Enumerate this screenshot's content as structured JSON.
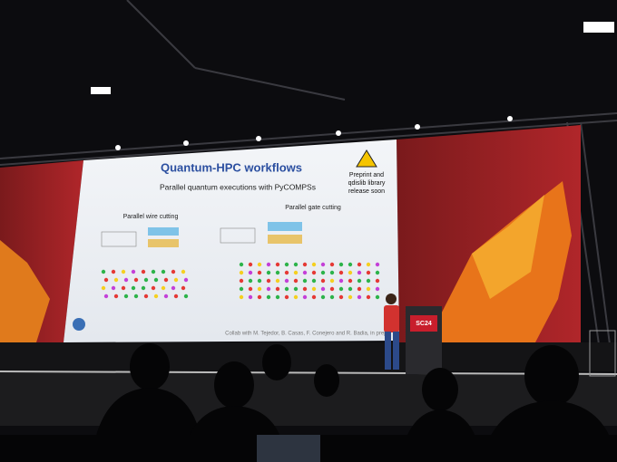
{
  "slide": {
    "title": "Quantum-HPC workflows",
    "subtitle": "Parallel quantum executions with PyCOMPSs",
    "notice": [
      "Preprint and",
      "qdislib library",
      "release soon"
    ],
    "left_label": "Parallel wire cutting",
    "right_label": "Parallel gate cutting",
    "credit": "Collab with M. Tejedor, B. Casas, F. Conejero and R. Badia, in prepar"
  },
  "podium": {
    "logo": "SC24"
  }
}
